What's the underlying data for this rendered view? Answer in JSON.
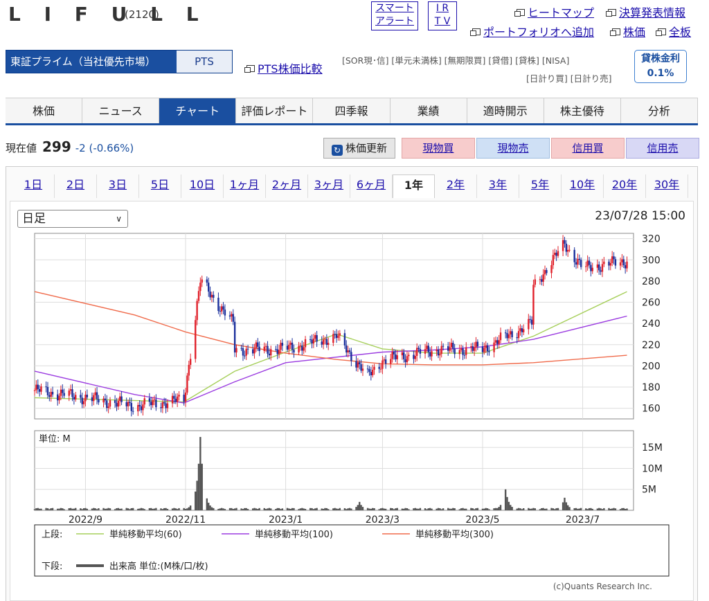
{
  "header": {
    "logo": "L I F U L L",
    "code": "(2120)",
    "smart_alert": [
      "スマート",
      "アラート"
    ],
    "ir_tv": [
      "I R",
      "T V"
    ],
    "links": {
      "heatmap": "ヒートマップ",
      "earnings": "決算発表情報",
      "portfolio": "ポートフォリオへ追加",
      "price": "株価",
      "board": "全板"
    }
  },
  "market": {
    "primary": "東証プライム（当社優先市場）",
    "pts": "PTS",
    "pts_compare": "PTS株価比較",
    "tags_row1": "[SOR現･信] [単元未満株] [無期限買] [貸借] [貸株] [NISA]",
    "tags_row2": "[日計り買] [日計り売]",
    "lending_label": "貸株金利",
    "lending_value": "0.1%"
  },
  "tabs": [
    "株価",
    "ニュース",
    "チャート",
    "評価レポート",
    "四季報",
    "業績",
    "適時開示",
    "株主優待",
    "分析"
  ],
  "active_tab": "チャート",
  "price": {
    "label": "現在値",
    "value": "299",
    "change": "-2 (-0.66%)"
  },
  "buttons": {
    "refresh": "株価更新",
    "spot_buy": "現物買",
    "spot_sell": "現物売",
    "margin_buy": "信用買",
    "margin_sell": "信用売"
  },
  "colors": {
    "spot_buy": "#f7cccc",
    "spot_sell": "#cfe0f5",
    "margin_buy": "#f7cccc",
    "margin_sell": "#d8d8f5",
    "up": "#e0202a",
    "down": "#1a2f9c",
    "ma60": "#a6cf5a",
    "ma100": "#9b3ce0",
    "ma300": "#f06a4a",
    "volume": "#555555"
  },
  "periods": [
    "1日",
    "2日",
    "3日",
    "5日",
    "10日",
    "1ヶ月",
    "2ヶ月",
    "3ヶ月",
    "6ヶ月",
    "1年",
    "2年",
    "3年",
    "5年",
    "10年",
    "20年",
    "30年"
  ],
  "active_period": "1年",
  "chart_controls": {
    "interval": "日足",
    "timestamp": "23/07/28 15:00"
  },
  "chart_data": {
    "type": "line",
    "price_axis": {
      "ylim": [
        150,
        325
      ],
      "ticks": [
        160,
        180,
        200,
        220,
        240,
        260,
        280,
        300,
        320
      ]
    },
    "volume_axis": {
      "unit_label": "単位: M",
      "ylim": [
        0,
        19
      ],
      "ticks": [
        5,
        10,
        15
      ],
      "tick_labels": [
        "5M",
        "10M",
        "15M"
      ]
    },
    "x_ticks": [
      "2022/9",
      "2022/11",
      "2023/1",
      "2023/3",
      "2023/5",
      "2023/7"
    ],
    "price": {
      "x": [
        "2022/8",
        "2022/9",
        "2022/10",
        "2022/10/31",
        "2022/11/10",
        "2022/11/30",
        "2022/12",
        "2023/1",
        "2023/2",
        "2023/2/20",
        "2023/3",
        "2023/4",
        "2023/5",
        "2023/5/31",
        "2023/6",
        "2023/6/20",
        "2023/7",
        "2023/7/28"
      ],
      "y": [
        177,
        170,
        162,
        168,
        280,
        240,
        215,
        216,
        228,
        190,
        205,
        215,
        216,
        240,
        275,
        315,
        292,
        299
      ]
    },
    "series": [
      {
        "name": "単純移動平均(60)",
        "x": [
          "2022/8",
          "2022/10/31",
          "2022/12",
          "2023/1",
          "2023/2",
          "2023/3",
          "2023/4",
          "2023/5",
          "2023/6",
          "2023/7/28"
        ],
        "y": [
          170,
          166,
          195,
          213,
          230,
          216,
          212,
          212,
          228,
          270
        ]
      },
      {
        "name": "単純移動平均(100)",
        "x": [
          "2022/8",
          "2022/10",
          "2022/10/31",
          "2022/12",
          "2023/1",
          "2023/3",
          "2023/4",
          "2023/5",
          "2023/6",
          "2023/7/28"
        ],
        "y": [
          195,
          173,
          165,
          185,
          203,
          213,
          215,
          218,
          225,
          247
        ]
      },
      {
        "name": "単純移動平均(300)",
        "x": [
          "2022/8",
          "2022/10",
          "2022/11",
          "2022/12",
          "2023/1",
          "2023/2",
          "2023/3",
          "2023/4",
          "2023/5",
          "2023/6",
          "2023/7/28"
        ],
        "y": [
          270,
          248,
          232,
          220,
          212,
          206,
          202,
          201,
          201,
          203,
          210
        ]
      }
    ],
    "volume": {
      "name": "出来高",
      "peaks": [
        {
          "x": "2022/11/10",
          "value": 17.5
        },
        {
          "x": "2023/2/15",
          "value": 2.0
        },
        {
          "x": "2023/5/15",
          "value": 5.0
        },
        {
          "x": "2023/6/20",
          "value": 3.0
        }
      ]
    },
    "legend": {
      "upper_label": "上段:",
      "lower_label": "下段:",
      "upper": [
        "単純移動平均(60)",
        "単純移動平均(100)",
        "単純移動平均(300)"
      ],
      "lower": "出来高 単位:(M株/口/枚)"
    },
    "credit": "(c)Quants Research Inc."
  }
}
